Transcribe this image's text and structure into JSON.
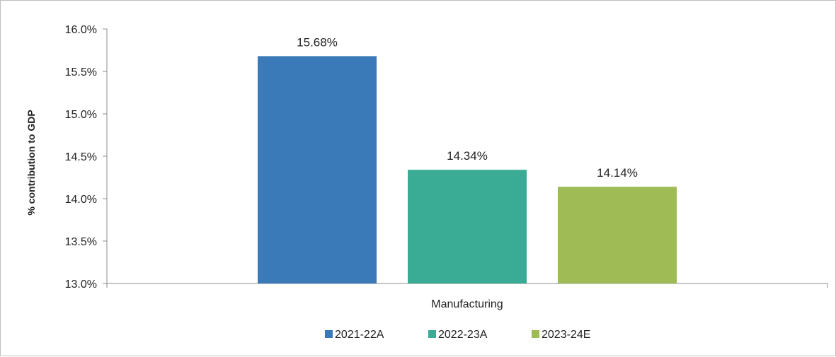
{
  "chart_data": {
    "type": "bar",
    "categories": [
      "Manufacturing"
    ],
    "series": [
      {
        "name": "2021-22A",
        "values": [
          15.68
        ],
        "label": "15.68%",
        "color": "#3a7ab8"
      },
      {
        "name": "2022-23A",
        "values": [
          14.34
        ],
        "label": "14.34%",
        "color": "#3aab94"
      },
      {
        "name": "2023-24E",
        "values": [
          14.14
        ],
        "label": "14.14%",
        "color": "#9fbb56"
      }
    ],
    "ylabel": "% contribution to GDP",
    "xlabel": "",
    "ylim": [
      13.0,
      16.0
    ],
    "yticks": [
      13.0,
      13.5,
      14.0,
      14.5,
      15.0,
      15.5,
      16.0
    ],
    "ytick_labels": [
      "13.0%",
      "13.5%",
      "14.0%",
      "14.5%",
      "15.0%",
      "15.5%",
      "16.0%"
    ],
    "grid": false,
    "legend_position": "bottom"
  }
}
